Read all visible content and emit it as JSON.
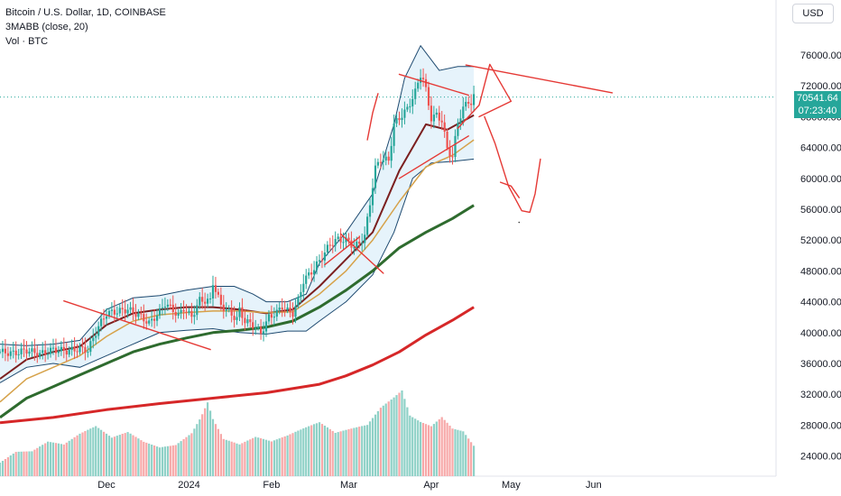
{
  "header": {
    "title": "Bitcoin / U.S. Dollar, 1D, COINBASE",
    "indicator_1": "3MABB (close, 20)",
    "indicator_2": "Vol · BTC",
    "currency": "USD"
  },
  "last_price": {
    "value": "70541.64",
    "countdown": "07:23:40",
    "color": "#26a69a"
  },
  "colors": {
    "up": "#26a69a",
    "down": "#ef5350",
    "vol_up": "#8fd1c7",
    "vol_down": "#f7a8a8",
    "ma_fast": "#7b1f1f",
    "ma_mid": "#d6a24a",
    "ma_slow": "#2e6b2e",
    "ma_long": "#d62728",
    "band_fill": "#e6f3fb",
    "band_line": "#1e4a70",
    "drawing": "#e53935"
  },
  "chart_data": {
    "type": "candlestick",
    "x_axis": {
      "start_date": "2023-10-22",
      "ticks": [
        {
          "label": "Dec",
          "date": "2023-12-01"
        },
        {
          "label": "2024",
          "date": "2024-01-01"
        },
        {
          "label": "Feb",
          "date": "2024-02-01"
        },
        {
          "label": "Mar",
          "date": "2024-03-01"
        },
        {
          "label": "Apr",
          "date": "2024-04-01"
        },
        {
          "label": "May",
          "date": "2024-05-01"
        },
        {
          "label": "Jun",
          "date": "2024-06-01"
        }
      ]
    },
    "y_axis": {
      "ticks": [
        "76000.00",
        "72000.00",
        "68000.00",
        "64000.00",
        "60000.00",
        "56000.00",
        "52000.00",
        "48000.00",
        "44000.00",
        "40000.00",
        "36000.00",
        "32000.00",
        "28000.00",
        "24000.00"
      ],
      "range": [
        23000,
        79500
      ]
    },
    "price_path": [
      [
        0,
        37500
      ],
      [
        5,
        37300
      ],
      [
        10,
        37700
      ],
      [
        15,
        37200
      ],
      [
        20,
        37800
      ],
      [
        25,
        37600
      ],
      [
        30,
        37900
      ],
      [
        33,
        37700
      ],
      [
        37,
        40800
      ],
      [
        40,
        42500
      ],
      [
        45,
        42800
      ],
      [
        48,
        43000
      ],
      [
        52,
        42300
      ],
      [
        56,
        41200
      ],
      [
        60,
        42700
      ],
      [
        62,
        43800
      ],
      [
        65,
        42900
      ],
      [
        67,
        42200
      ],
      [
        69,
        43100
      ],
      [
        72,
        42000
      ],
      [
        75,
        44200
      ],
      [
        79,
        44100
      ],
      [
        80,
        46500
      ],
      [
        83,
        43500
      ],
      [
        85,
        43000
      ],
      [
        87,
        42300
      ],
      [
        89,
        41800
      ],
      [
        90,
        42900
      ],
      [
        92,
        41500
      ],
      [
        95,
        41000
      ],
      [
        97,
        40300
      ],
      [
        98,
        39900
      ],
      [
        101,
        42000
      ],
      [
        104,
        42600
      ],
      [
        106,
        43400
      ],
      [
        108,
        42800
      ],
      [
        110,
        42500
      ],
      [
        112,
        44200
      ],
      [
        114,
        46700
      ],
      [
        118,
        48300
      ],
      [
        121,
        49800
      ],
      [
        124,
        51500
      ],
      [
        127,
        52100
      ],
      [
        129,
        52000
      ],
      [
        131,
        51800
      ],
      [
        133,
        51100
      ],
      [
        135,
        51600
      ],
      [
        137,
        52500
      ],
      [
        139,
        56800
      ],
      [
        141,
        61300
      ],
      [
        143,
        62500
      ],
      [
        146,
        62300
      ],
      [
        148,
        67000
      ],
      [
        151,
        68200
      ],
      [
        153,
        69000
      ],
      [
        156,
        71200
      ],
      [
        158,
        73500
      ],
      [
        159,
        72800
      ],
      [
        160,
        71400
      ],
      [
        162,
        67800
      ],
      [
        164,
        68200
      ],
      [
        166,
        67500
      ],
      [
        168,
        63800
      ],
      [
        170,
        62800
      ],
      [
        172,
        67300
      ],
      [
        174,
        69100
      ],
      [
        176,
        70000
      ],
      [
        177,
        69800
      ],
      [
        178,
        70541.64
      ]
    ],
    "volume_path": [
      [
        0,
        30
      ],
      [
        6,
        45
      ],
      [
        12,
        38
      ],
      [
        18,
        52
      ],
      [
        24,
        40
      ],
      [
        30,
        60
      ],
      [
        36,
        75
      ],
      [
        42,
        50
      ],
      [
        48,
        65
      ],
      [
        54,
        48
      ],
      [
        60,
        42
      ],
      [
        66,
        55
      ],
      [
        72,
        90
      ],
      [
        78,
        160
      ],
      [
        80,
        120
      ],
      [
        84,
        70
      ],
      [
        90,
        50
      ],
      [
        96,
        60
      ],
      [
        102,
        45
      ],
      [
        108,
        55
      ],
      [
        114,
        70
      ],
      [
        120,
        85
      ],
      [
        126,
        65
      ],
      [
        132,
        80
      ],
      [
        138,
        95
      ],
      [
        143,
        140
      ],
      [
        148,
        170
      ],
      [
        151,
        190
      ],
      [
        154,
        130
      ],
      [
        158,
        110
      ],
      [
        162,
        95
      ],
      [
        166,
        110
      ],
      [
        170,
        80
      ],
      [
        174,
        70
      ],
      [
        178,
        35
      ]
    ],
    "moving_averages": [
      {
        "name": "fast",
        "color": "#7b1f1f",
        "values": [
          [
            0,
            34000
          ],
          [
            10,
            36500
          ],
          [
            20,
            37500
          ],
          [
            30,
            38200
          ],
          [
            40,
            41000
          ],
          [
            50,
            42500
          ],
          [
            60,
            43000
          ],
          [
            70,
            43300
          ],
          [
            80,
            43300
          ],
          [
            90,
            43000
          ],
          [
            100,
            42500
          ],
          [
            110,
            43000
          ],
          [
            120,
            46000
          ],
          [
            130,
            49500
          ],
          [
            140,
            53000
          ],
          [
            150,
            61000
          ],
          [
            160,
            67000
          ],
          [
            168,
            66300
          ],
          [
            178,
            68200
          ]
        ]
      },
      {
        "name": "mid",
        "color": "#d6a24a",
        "values": [
          [
            0,
            31000
          ],
          [
            10,
            34000
          ],
          [
            20,
            35500
          ],
          [
            30,
            37000
          ],
          [
            40,
            39500
          ],
          [
            50,
            41500
          ],
          [
            60,
            42300
          ],
          [
            70,
            42600
          ],
          [
            80,
            42800
          ],
          [
            90,
            42800
          ],
          [
            100,
            42600
          ],
          [
            110,
            42700
          ],
          [
            120,
            45000
          ],
          [
            130,
            48000
          ],
          [
            140,
            52000
          ],
          [
            150,
            57000
          ],
          [
            160,
            61500
          ],
          [
            170,
            63000
          ],
          [
            178,
            65000
          ]
        ]
      },
      {
        "name": "slow",
        "color": "#2e6b2e",
        "values": [
          [
            0,
            29000
          ],
          [
            10,
            31500
          ],
          [
            20,
            33000
          ],
          [
            30,
            34500
          ],
          [
            40,
            36000
          ],
          [
            50,
            37500
          ],
          [
            60,
            38500
          ],
          [
            70,
            39300
          ],
          [
            80,
            40000
          ],
          [
            90,
            40300
          ],
          [
            100,
            40700
          ],
          [
            110,
            41500
          ],
          [
            120,
            43300
          ],
          [
            130,
            45500
          ],
          [
            140,
            48000
          ],
          [
            150,
            51000
          ],
          [
            160,
            53000
          ],
          [
            170,
            54800
          ],
          [
            178,
            56500
          ]
        ]
      },
      {
        "name": "long",
        "color": "#d62728",
        "values": [
          [
            0,
            28300
          ],
          [
            20,
            29000
          ],
          [
            40,
            30000
          ],
          [
            60,
            30800
          ],
          [
            80,
            31500
          ],
          [
            100,
            32200
          ],
          [
            120,
            33300
          ],
          [
            130,
            34400
          ],
          [
            140,
            35800
          ],
          [
            150,
            37500
          ],
          [
            160,
            39700
          ],
          [
            170,
            41600
          ],
          [
            178,
            43300
          ]
        ]
      }
    ],
    "bollinger_band": {
      "upper": [
        [
          0,
          38500
        ],
        [
          10,
          38300
        ],
        [
          20,
          38500
        ],
        [
          30,
          39000
        ],
        [
          40,
          43000
        ],
        [
          50,
          44500
        ],
        [
          60,
          44800
        ],
        [
          70,
          45500
        ],
        [
          80,
          46000
        ],
        [
          88,
          46000
        ],
        [
          95,
          45000
        ],
        [
          100,
          44000
        ],
        [
          108,
          44000
        ],
        [
          115,
          45000
        ],
        [
          120,
          49000
        ],
        [
          130,
          53000
        ],
        [
          140,
          58000
        ],
        [
          148,
          67000
        ],
        [
          152,
          73000
        ],
        [
          158,
          77200
        ],
        [
          165,
          74000
        ],
        [
          172,
          74500
        ],
        [
          178,
          74500
        ]
      ],
      "lower": [
        [
          0,
          33500
        ],
        [
          10,
          35500
        ],
        [
          20,
          36000
        ],
        [
          30,
          35500
        ],
        [
          40,
          37000
        ],
        [
          50,
          38500
        ],
        [
          60,
          40000
        ],
        [
          70,
          40300
        ],
        [
          80,
          40500
        ],
        [
          90,
          40000
        ],
        [
          100,
          39800
        ],
        [
          108,
          40200
        ],
        [
          115,
          40200
        ],
        [
          120,
          41500
        ],
        [
          130,
          44000
        ],
        [
          140,
          47500
        ],
        [
          148,
          53000
        ],
        [
          155,
          60000
        ],
        [
          162,
          62000
        ],
        [
          170,
          62200
        ],
        [
          178,
          62500
        ]
      ]
    },
    "drawings": [
      {
        "kind": "trendline",
        "points": [
          [
            24,
            44100
          ],
          [
            79,
            37800
          ]
        ]
      },
      {
        "kind": "trendline",
        "points": [
          [
            122,
            48800
          ],
          [
            135,
            52400
          ]
        ]
      },
      {
        "kind": "trendline",
        "points": [
          [
            128,
            52800
          ],
          [
            144,
            47700
          ]
        ]
      },
      {
        "kind": "trendline",
        "points": [
          [
            150,
            73500
          ],
          [
            176,
            70800
          ]
        ]
      },
      {
        "kind": "trendline",
        "points": [
          [
            150,
            60000
          ],
          [
            176,
            65500
          ]
        ]
      },
      {
        "kind": "trendline",
        "points": [
          [
            175,
            74700
          ],
          [
            230,
            71100
          ]
        ]
      },
      {
        "kind": "trendline",
        "points": [
          [
            180,
            68000
          ],
          [
            192,
            70000
          ],
          [
            184,
            74800
          ],
          [
            180,
            69500
          ],
          [
            172,
            66500
          ]
        ]
      },
      {
        "kind": "freehand",
        "points": [
          [
            182,
            68000
          ],
          [
            186,
            64500
          ],
          [
            191,
            59000
          ],
          [
            196,
            55800
          ],
          [
            199,
            55600
          ],
          [
            201,
            58000
          ],
          [
            203,
            62500
          ]
        ]
      },
      {
        "kind": "freehand",
        "points": [
          [
            188,
            59500
          ],
          [
            192,
            59000
          ],
          [
            195,
            57500
          ]
        ]
      },
      {
        "kind": "freehand",
        "points": [
          [
            138,
            65000
          ],
          [
            140,
            68500
          ],
          [
            142,
            71000
          ]
        ]
      }
    ]
  }
}
